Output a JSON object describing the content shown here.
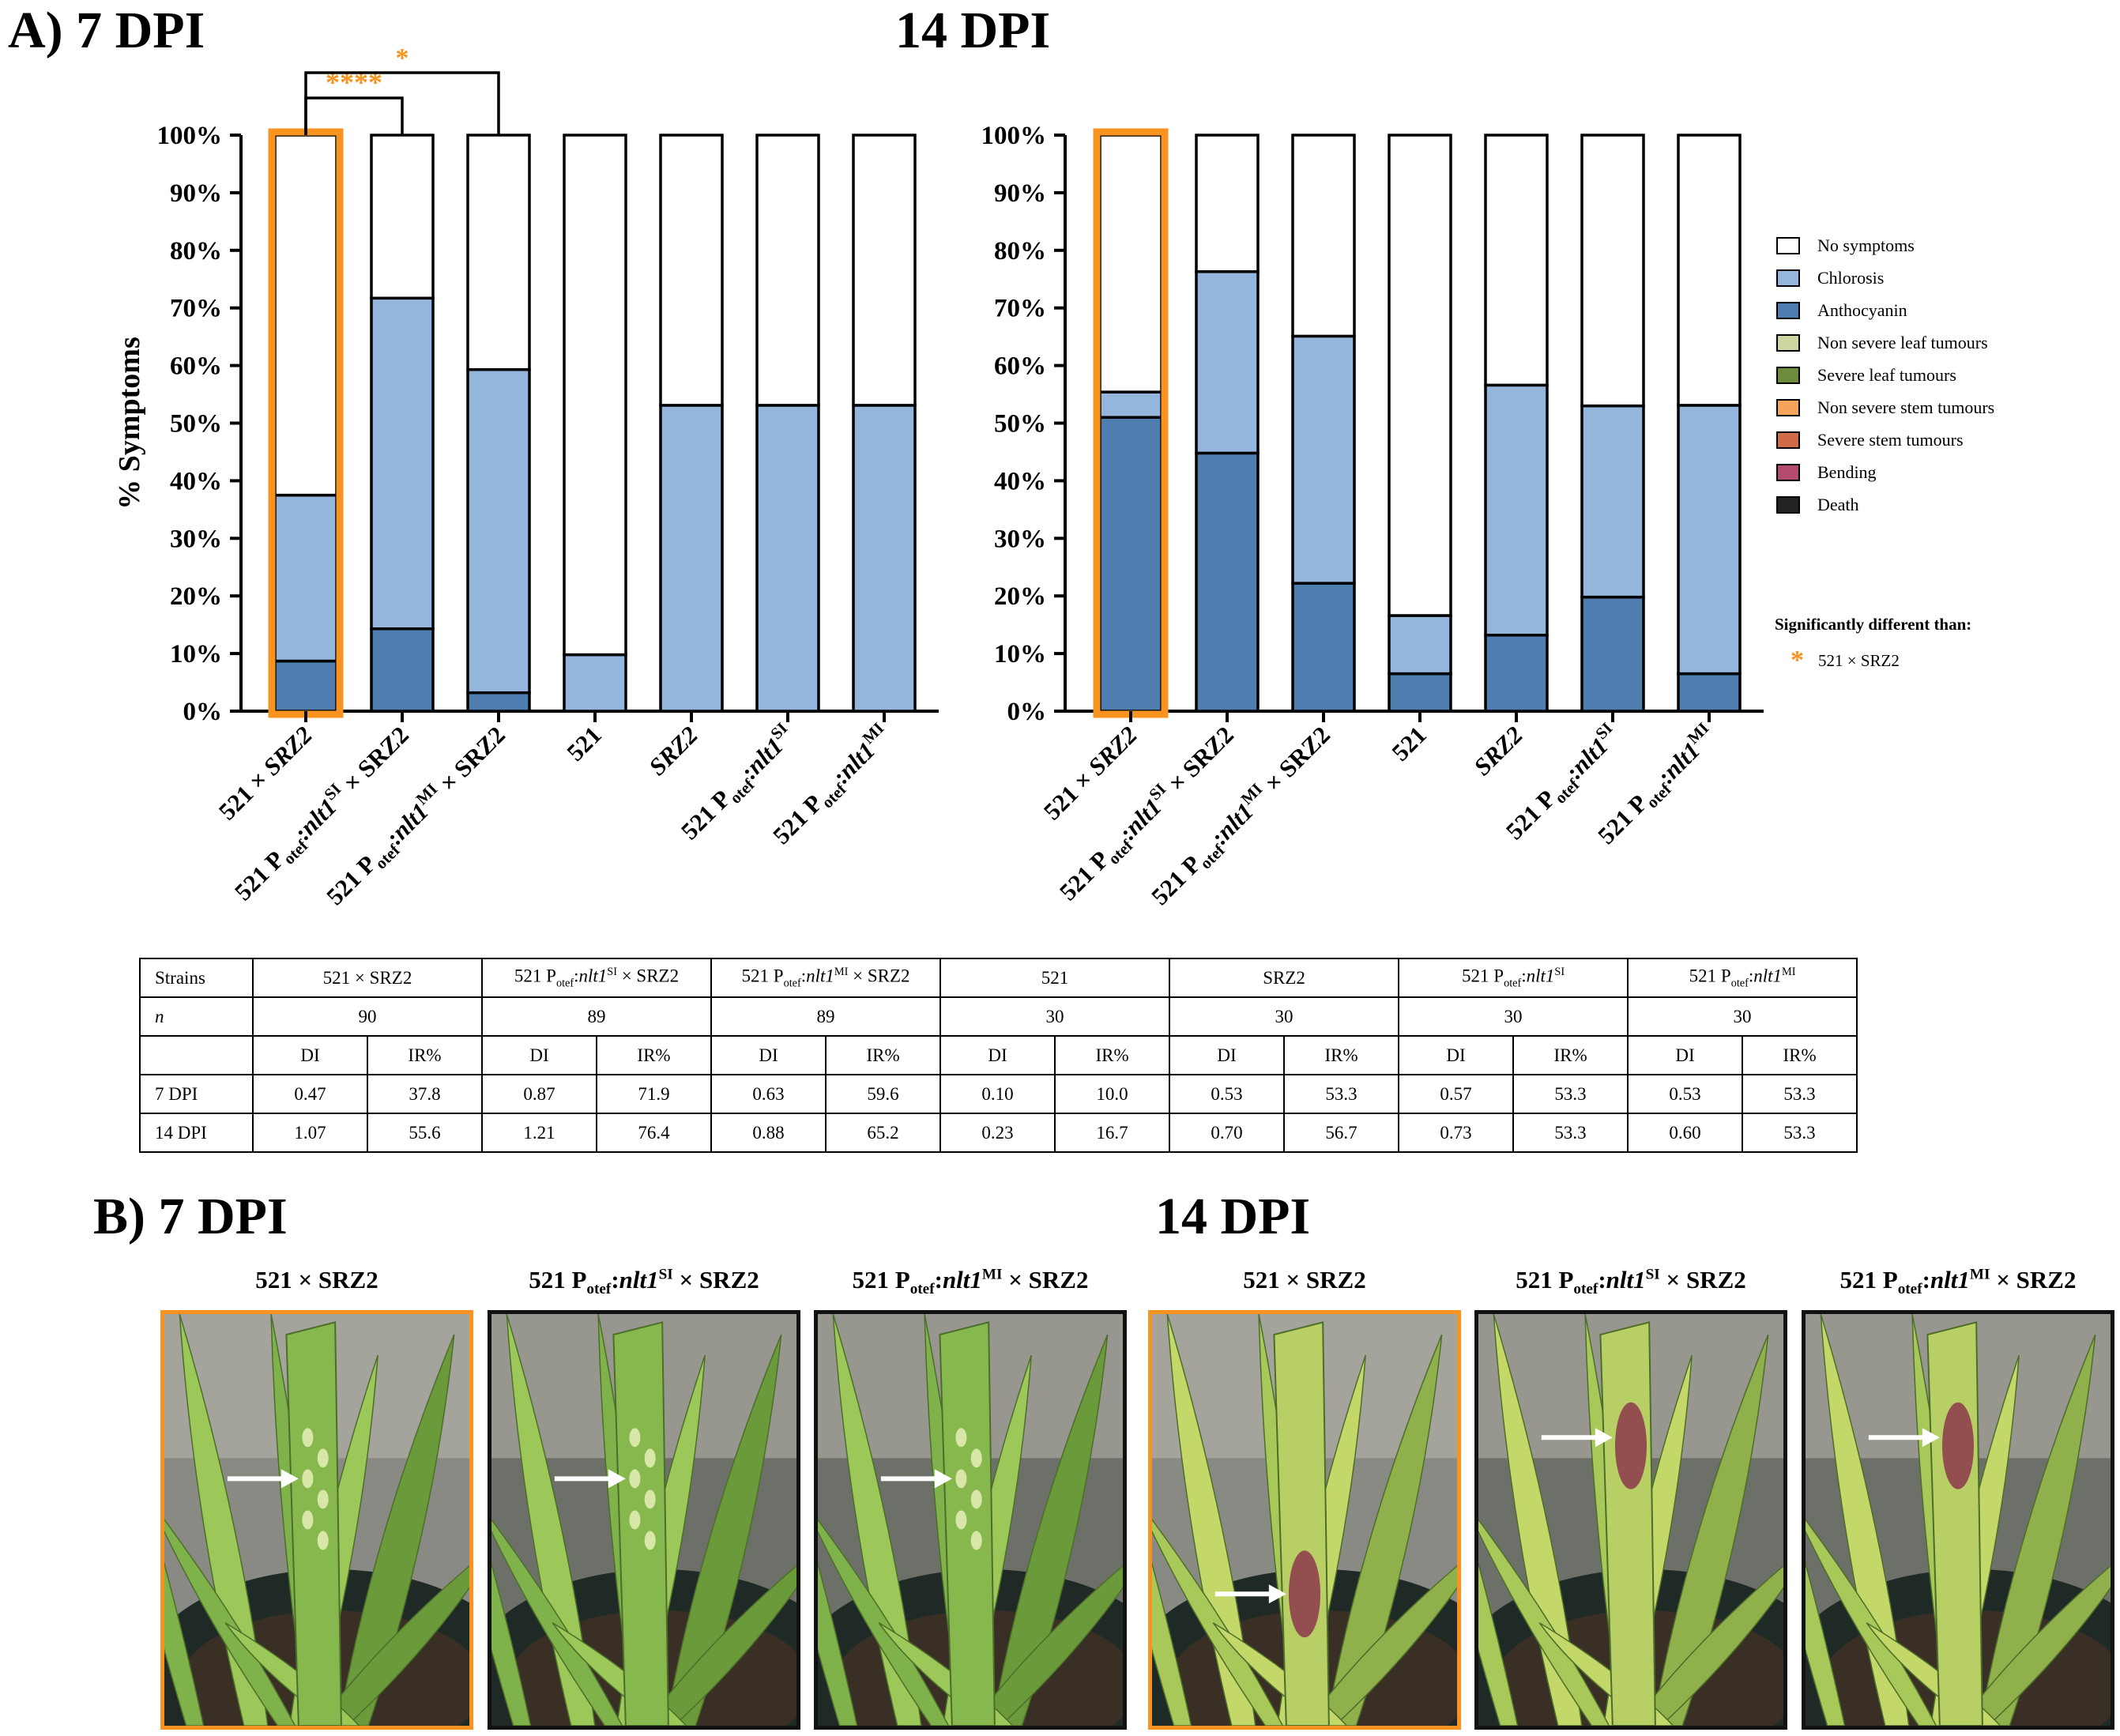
{
  "panel_a": {
    "title": "A) 7 DPI",
    "title_14": "14 DPI"
  },
  "panel_b": {
    "title": "B) 7 DPI",
    "title_14": "14 DPI",
    "photos": [
      {
        "label": "521 × SRZ2",
        "highlight": true
      },
      {
        "label_pre": "521 P",
        "label_sub": "otef",
        "label_gene": "nlt1",
        "label_sup": "SI",
        "label_post": " × SRZ2",
        "highlight": false
      },
      {
        "label_pre": "521 P",
        "label_sub": "otef",
        "label_gene": "nlt1",
        "label_sup": "MI",
        "label_post": " × SRZ2",
        "highlight": false
      },
      {
        "label": "521 × SRZ2",
        "highlight": true
      },
      {
        "label_pre": "521 P",
        "label_sub": "otef",
        "label_gene": "nlt1",
        "label_sup": "SI",
        "label_post": " × SRZ2",
        "highlight": false
      },
      {
        "label_pre": "521 P",
        "label_sub": "otef",
        "label_gene": "nlt1",
        "label_sup": "MI",
        "label_post": " × SRZ2",
        "highlight": false
      }
    ]
  },
  "chart_data": [
    {
      "type": "bar",
      "stacked": true,
      "title": "7 DPI",
      "ylabel": "% Symptoms",
      "ylim": [
        0,
        100
      ],
      "yticks": [
        "0%",
        "10%",
        "20%",
        "30%",
        "40%",
        "50%",
        "60%",
        "70%",
        "80%",
        "90%",
        "100%"
      ],
      "categories": [
        "521 × SRZ2",
        "521 Potef:nlt1SI × SRZ2",
        "521 Potef:nlt1MI × SRZ2",
        "521",
        "SRZ2",
        "521 Potef:nlt1SI",
        "521 Potef:nlt1MI"
      ],
      "series": [
        {
          "name": "Anthocyanin",
          "values": [
            8.7,
            14.3,
            3.2,
            0,
            0,
            0,
            0
          ]
        },
        {
          "name": "Chlorosis",
          "values": [
            28.8,
            57.4,
            56.1,
            9.8,
            53.1,
            53.1,
            53.1
          ]
        },
        {
          "name": "No symptoms",
          "values": [
            62.5,
            28.3,
            40.7,
            90.2,
            46.9,
            46.9,
            46.9
          ]
        }
      ],
      "significance": [
        {
          "from": "521 × SRZ2",
          "to": "521 Potef:nlt1SI × SRZ2",
          "label": "****"
        },
        {
          "from": "521 × SRZ2",
          "to": "521 Potef:nlt1MI × SRZ2",
          "label": "*"
        }
      ],
      "highlight": "521 × SRZ2"
    },
    {
      "type": "bar",
      "stacked": true,
      "title": "14 DPI",
      "ylabel": "",
      "ylim": [
        0,
        100
      ],
      "yticks": [
        "0%",
        "10%",
        "20%",
        "30%",
        "40%",
        "50%",
        "60%",
        "70%",
        "80%",
        "90%",
        "100%"
      ],
      "categories": [
        "521 × SRZ2",
        "521 Potef:nlt1SI × SRZ2",
        "521 Potef:nlt1MI × SRZ2",
        "521",
        "SRZ2",
        "521 Potef:nlt1SI",
        "521 Potef:nlt1MI"
      ],
      "series": [
        {
          "name": "Anthocyanin",
          "values": [
            51.0,
            44.8,
            22.2,
            6.5,
            13.2,
            19.8,
            6.5
          ]
        },
        {
          "name": "Chlorosis",
          "values": [
            4.4,
            31.5,
            42.9,
            10.1,
            43.4,
            33.2,
            46.6
          ]
        },
        {
          "name": "No symptoms",
          "values": [
            44.6,
            23.7,
            34.9,
            83.4,
            43.4,
            47.0,
            46.9
          ]
        }
      ],
      "highlight": "521 × SRZ2"
    }
  ],
  "legend": {
    "items": [
      {
        "label": "No symptoms",
        "color": "#FFFFFF"
      },
      {
        "label": "Chlorosis",
        "color": "#95B6DC"
      },
      {
        "label": "Anthocyanin",
        "color": "#4F7DB0"
      },
      {
        "label": "Non severe leaf tumours",
        "color": "#CDD6A1"
      },
      {
        "label": "Severe leaf tumours",
        "color": "#6E8B3D"
      },
      {
        "label": "Non severe stem tumours",
        "color": "#F6A35B"
      },
      {
        "label": "Severe stem tumours",
        "color": "#CF6B48"
      },
      {
        "label": "Bending",
        "color": "#B24B6C"
      },
      {
        "label": "Death",
        "color": "#222222"
      }
    ],
    "sig_title": "Significantly different than:",
    "sig_label": "521 × SRZ2",
    "sig_star": "*"
  },
  "colors": {
    "highlight": "#F7931E",
    "no_symptoms": "#FFFFFF",
    "chlorosis": "#95B6DC",
    "anthocyanin": "#4F7DB0"
  },
  "table": {
    "strains_label": "Strains",
    "n_label": "n",
    "rows_labels": [
      "7 DPI",
      "14 DPI"
    ],
    "di_label": "DI",
    "ir_label": "IR%",
    "strains": [
      {
        "name": "521 × SRZ2",
        "n": "90",
        "di7": "0.47",
        "ir7": "37.8",
        "di14": "1.07",
        "ir14": "55.6"
      },
      {
        "name_pre": "521 P",
        "name_sub": "otef",
        "name_gene": "nlt1",
        "name_sup": "SI",
        "name_post": " ×  SRZ2",
        "n": "89",
        "di7": "0.87",
        "ir7": "71.9",
        "di14": "1.21",
        "ir14": "76.4"
      },
      {
        "name_pre": "521 P",
        "name_sub": "otef",
        "name_gene": "nlt1",
        "name_sup": "MI",
        "name_post": " ×  SRZ2",
        "n": "89",
        "di7": "0.63",
        "ir7": "59.6",
        "di14": "0.88",
        "ir14": "65.2"
      },
      {
        "name": "521",
        "n": "30",
        "di7": "0.10",
        "ir7": "10.0",
        "di14": "0.23",
        "ir14": "16.7"
      },
      {
        "name": "SRZ2",
        "n": "30",
        "di7": "0.53",
        "ir7": "53.3",
        "di14": "0.70",
        "ir14": "56.7"
      },
      {
        "name_pre": "521 P",
        "name_sub": "otef",
        "name_gene": "nlt1",
        "name_sup": "SI",
        "name_post": "",
        "n": "30",
        "di7": "0.57",
        "ir7": "53.3",
        "di14": "0.73",
        "ir14": "53.3"
      },
      {
        "name_pre": "521 P",
        "name_sub": "otef",
        "name_gene": "nlt1",
        "name_sup": "MI",
        "name_post": "",
        "n": "30",
        "di7": "0.53",
        "ir7": "53.3",
        "di14": "0.60",
        "ir14": "53.3"
      }
    ]
  }
}
